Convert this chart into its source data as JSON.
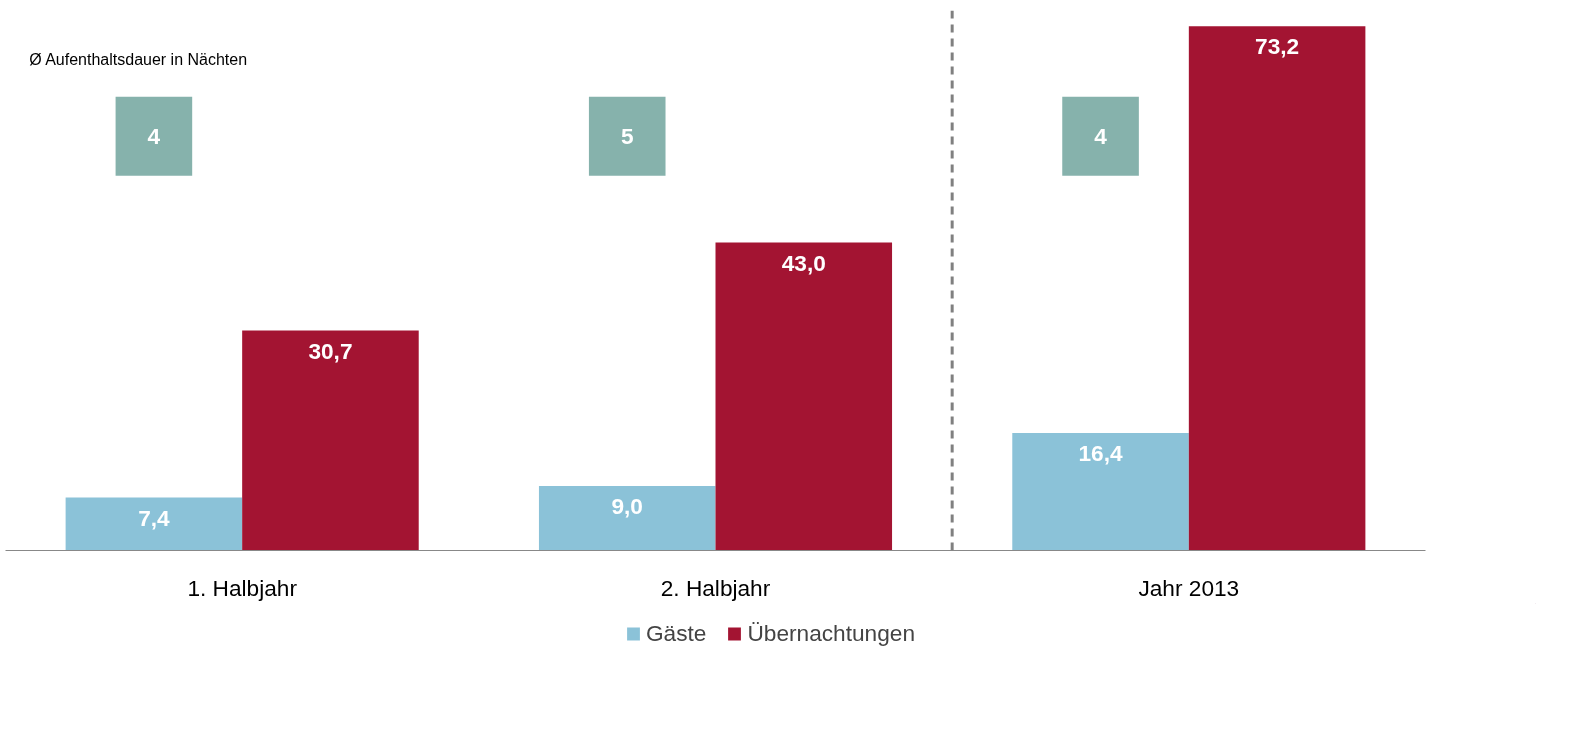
{
  "chart_data": {
    "type": "bar",
    "categories": [
      "1. Halbjahr",
      "2. Halbjahr",
      "Jahr 2013"
    ],
    "series": [
      {
        "name": "Gäste",
        "color": "#8bc2d8",
        "values": [
          7.4,
          9.0,
          16.4
        ],
        "value_labels": [
          "7,4",
          "9,0",
          "16,4"
        ]
      },
      {
        "name": "Übernachtungen",
        "color": "#a31432",
        "values": [
          30.7,
          43.0,
          73.2
        ],
        "value_labels": [
          "30,7",
          "43,0",
          "73,2"
        ]
      }
    ],
    "annotations": [
      "Ø Aufenthaltsdauer in Nächten",
      "4",
      "5",
      "4"
    ],
    "legend": "bottom",
    "grid": false
  }
}
